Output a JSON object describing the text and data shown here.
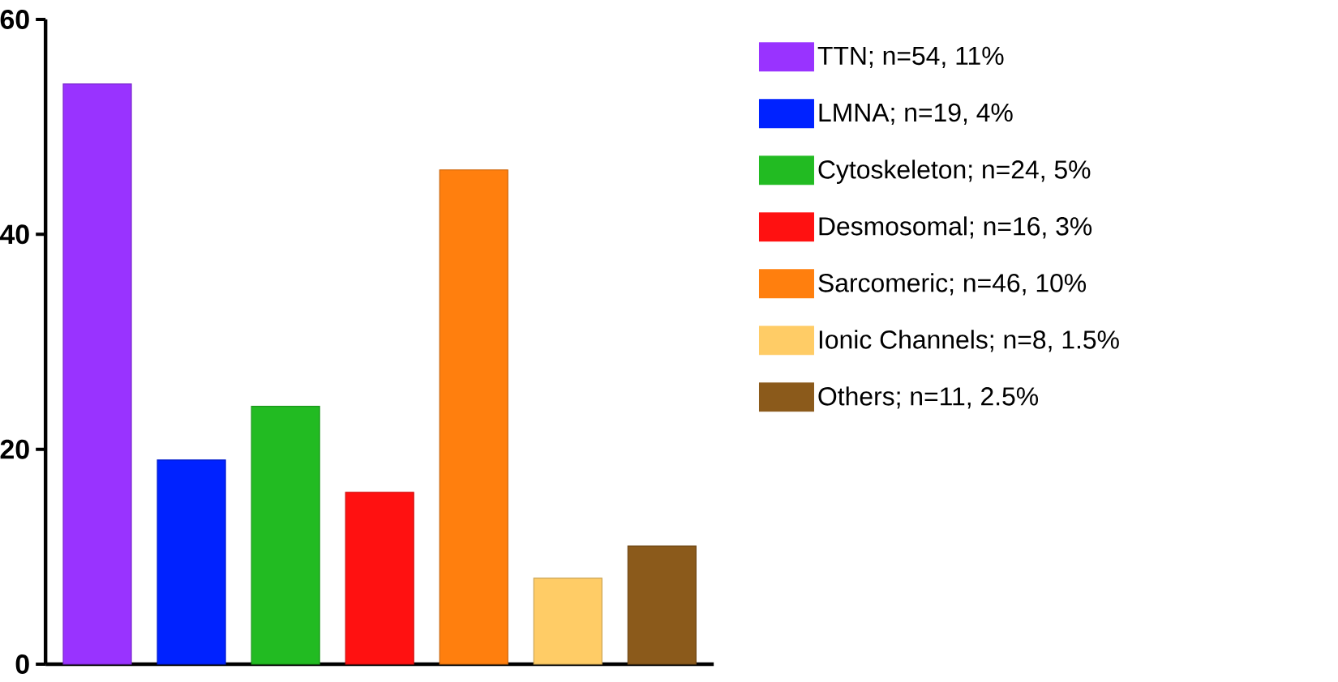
{
  "chart_data": {
    "type": "bar",
    "categories": [
      null,
      null,
      null,
      null,
      null,
      null,
      null
    ],
    "series": [
      {
        "name": "TTN; n=54, 11%",
        "color": "#9933ff",
        "values": [
          54,
          null,
          null,
          null,
          null,
          null,
          null
        ]
      },
      {
        "name": "LMNA; n=19, 4%",
        "color": "#0022ff",
        "values": [
          null,
          19,
          null,
          null,
          null,
          null,
          null
        ]
      },
      {
        "name": "Cytoskeleton; n=24, 5%",
        "color": "#22bb22",
        "values": [
          null,
          null,
          24,
          null,
          null,
          null,
          null
        ]
      },
      {
        "name": "Desmosomal; n=16, 3%",
        "color": "#ff1111",
        "values": [
          null,
          null,
          null,
          16,
          null,
          null,
          null
        ]
      },
      {
        "name": "Sarcomeric; n=46, 10%",
        "color": "#ff7f0e",
        "values": [
          null,
          null,
          null,
          null,
          46,
          null,
          null
        ]
      },
      {
        "name": "Ionic Channels; n=8, 1.5%",
        "color": "#ffcc66",
        "values": [
          null,
          null,
          null,
          null,
          null,
          8,
          null
        ]
      },
      {
        "name": "Others; n=11, 2.5%",
        "color": "#8b5a1b",
        "values": [
          null,
          null,
          null,
          null,
          null,
          null,
          11
        ]
      }
    ],
    "ylim": [
      0,
      60
    ],
    "yticks": [
      0,
      20,
      40,
      60
    ],
    "legend": "right",
    "grid": false
  }
}
